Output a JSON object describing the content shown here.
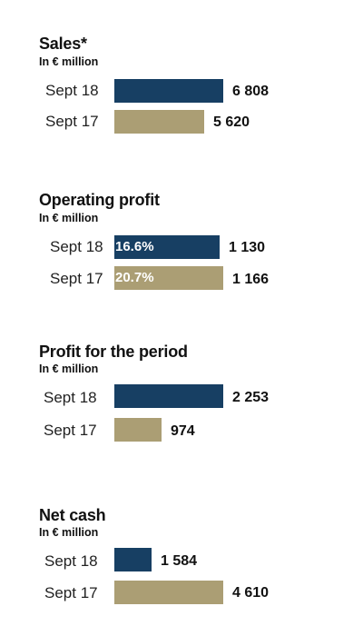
{
  "colors": {
    "sept18": "#173f63",
    "sept17": "#ab9e74"
  },
  "chart_data": [
    {
      "type": "bar",
      "orientation": "horizontal",
      "title": "Sales*",
      "subtitle": "In € million",
      "categories": [
        "Sept 18",
        "Sept 17"
      ],
      "values": [
        6808,
        5620
      ],
      "value_labels": [
        "6 808",
        "5 620"
      ]
    },
    {
      "type": "bar",
      "orientation": "horizontal",
      "title": "Operating profit",
      "subtitle": "In € million",
      "categories": [
        "Sept 18",
        "Sept 17"
      ],
      "values": [
        1130,
        1166
      ],
      "value_labels": [
        "1 130",
        "1 166"
      ],
      "margin_labels": [
        "16.6%",
        "20.7%"
      ],
      "margin_values": [
        16.6,
        20.7
      ]
    },
    {
      "type": "bar",
      "orientation": "horizontal",
      "title": "Profit for the period",
      "subtitle": "In € million",
      "categories": [
        "Sept 18",
        "Sept 17"
      ],
      "values": [
        2253,
        974
      ],
      "value_labels": [
        "2 253",
        "974"
      ]
    },
    {
      "type": "bar",
      "orientation": "horizontal",
      "title": "Net cash",
      "subtitle": "In € million",
      "categories": [
        "Sept 18",
        "Sept 17"
      ],
      "values": [
        1584,
        4610
      ],
      "value_labels": [
        "1 584",
        "4 610"
      ]
    }
  ]
}
